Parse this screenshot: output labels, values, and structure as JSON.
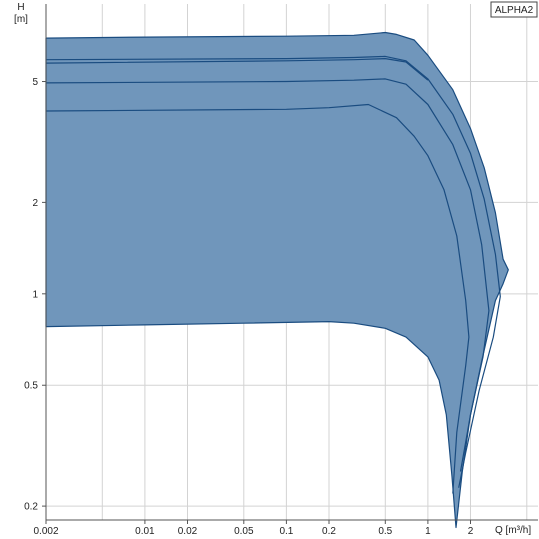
{
  "chart_data": {
    "type": "area",
    "title": "",
    "legend": "ALPHA2",
    "legend_position": "top-right",
    "x_scale": "log",
    "y_scale": "log",
    "xlabel": "Q [m³/h]",
    "ylabel_top": "H",
    "ylabel_unit": "[m]",
    "xlim": [
      0.002,
      6
    ],
    "ylim": [
      0.18,
      9
    ],
    "grid": true,
    "x_ticks": [
      {
        "value": 0.002,
        "label": "0.002"
      },
      {
        "value": 0.01,
        "label": "0.01"
      },
      {
        "value": 0.02,
        "label": "0.02"
      },
      {
        "value": 0.05,
        "label": "0.05"
      },
      {
        "value": 0.1,
        "label": "0.1"
      },
      {
        "value": 0.2,
        "label": "0.2"
      },
      {
        "value": 0.5,
        "label": "0.5"
      },
      {
        "value": 1,
        "label": "1"
      },
      {
        "value": 2,
        "label": "2"
      }
    ],
    "x_grid": [
      0.002,
      0.005,
      0.01,
      0.02,
      0.05,
      0.1,
      0.2,
      0.5,
      1,
      2,
      5
    ],
    "y_ticks": [
      {
        "value": 0.2,
        "label": "0.2"
      },
      {
        "value": 0.5,
        "label": "0.5"
      },
      {
        "value": 1,
        "label": "1"
      },
      {
        "value": 2,
        "label": "2"
      },
      {
        "value": 5,
        "label": "5"
      }
    ],
    "y_grid": [
      0.2,
      0.5,
      1,
      2,
      5
    ],
    "colors": {
      "fill": "#7096bb",
      "line": "#1a4c80",
      "grid": "#d3d3d3",
      "axis": "#555555"
    },
    "envelope": [
      {
        "x": 0.002,
        "y": 6.95
      },
      {
        "x": 0.01,
        "y": 7.0
      },
      {
        "x": 0.1,
        "y": 7.05
      },
      {
        "x": 0.3,
        "y": 7.1
      },
      {
        "x": 0.5,
        "y": 7.25
      },
      {
        "x": 0.6,
        "y": 7.15
      },
      {
        "x": 0.8,
        "y": 6.85
      },
      {
        "x": 1.0,
        "y": 6.1
      },
      {
        "x": 1.5,
        "y": 4.7
      },
      {
        "x": 2.0,
        "y": 3.5
      },
      {
        "x": 2.5,
        "y": 2.6
      },
      {
        "x": 3.0,
        "y": 1.85
      },
      {
        "x": 3.4,
        "y": 1.3
      },
      {
        "x": 3.7,
        "y": 1.2
      },
      {
        "x": 3.4,
        "y": 1.08
      },
      {
        "x": 3.0,
        "y": 0.95
      },
      {
        "x": 2.4,
        "y": 0.6
      },
      {
        "x": 2.0,
        "y": 0.4
      },
      {
        "x": 1.75,
        "y": 0.26
      },
      {
        "x": 1.58,
        "y": 0.17
      },
      {
        "x": 1.48,
        "y": 0.25
      },
      {
        "x": 1.35,
        "y": 0.4
      },
      {
        "x": 1.2,
        "y": 0.52
      },
      {
        "x": 1.0,
        "y": 0.62
      },
      {
        "x": 0.7,
        "y": 0.72
      },
      {
        "x": 0.5,
        "y": 0.77
      },
      {
        "x": 0.3,
        "y": 0.8
      },
      {
        "x": 0.2,
        "y": 0.81
      },
      {
        "x": 0.05,
        "y": 0.8
      },
      {
        "x": 0.01,
        "y": 0.79
      },
      {
        "x": 0.002,
        "y": 0.78
      }
    ],
    "series": [
      {
        "values": [
          {
            "x": 0.002,
            "y": 5.9
          },
          {
            "x": 0.1,
            "y": 5.95
          },
          {
            "x": 0.3,
            "y": 6.0
          },
          {
            "x": 0.5,
            "y": 6.05
          },
          {
            "x": 0.7,
            "y": 5.85
          },
          {
            "x": 1.0,
            "y": 5.1
          },
          {
            "x": 1.5,
            "y": 3.9
          },
          {
            "x": 2.0,
            "y": 2.9
          },
          {
            "x": 2.5,
            "y": 2.05
          },
          {
            "x": 3.0,
            "y": 1.35
          },
          {
            "x": 3.25,
            "y": 0.98
          },
          {
            "x": 2.9,
            "y": 0.72
          },
          {
            "x": 2.3,
            "y": 0.48
          },
          {
            "x": 1.85,
            "y": 0.3
          },
          {
            "x": 1.65,
            "y": 0.23
          }
        ]
      },
      {
        "values": [
          {
            "x": 0.002,
            "y": 5.75
          },
          {
            "x": 0.1,
            "y": 5.85
          },
          {
            "x": 0.3,
            "y": 5.9
          },
          {
            "x": 0.5,
            "y": 5.95
          },
          {
            "x": 0.7,
            "y": 5.8
          },
          {
            "x": 1.0,
            "y": 5.05
          }
        ]
      },
      {
        "values": [
          {
            "x": 0.002,
            "y": 4.95
          },
          {
            "x": 0.1,
            "y": 5.0
          },
          {
            "x": 0.3,
            "y": 5.05
          },
          {
            "x": 0.5,
            "y": 5.1
          },
          {
            "x": 0.7,
            "y": 4.9
          },
          {
            "x": 1.0,
            "y": 4.2
          },
          {
            "x": 1.5,
            "y": 3.1
          },
          {
            "x": 2.0,
            "y": 2.2
          },
          {
            "x": 2.4,
            "y": 1.45
          },
          {
            "x": 2.7,
            "y": 0.88
          },
          {
            "x": 2.45,
            "y": 0.62
          },
          {
            "x": 2.0,
            "y": 0.4
          },
          {
            "x": 1.7,
            "y": 0.26
          }
        ]
      },
      {
        "values": [
          {
            "x": 0.002,
            "y": 4.0
          },
          {
            "x": 0.1,
            "y": 4.05
          },
          {
            "x": 0.2,
            "y": 4.1
          },
          {
            "x": 0.38,
            "y": 4.2
          },
          {
            "x": 0.6,
            "y": 3.8
          },
          {
            "x": 0.8,
            "y": 3.3
          },
          {
            "x": 1.0,
            "y": 2.85
          },
          {
            "x": 1.3,
            "y": 2.2
          },
          {
            "x": 1.6,
            "y": 1.55
          },
          {
            "x": 1.85,
            "y": 0.95
          },
          {
            "x": 1.95,
            "y": 0.72
          },
          {
            "x": 1.85,
            "y": 0.58
          },
          {
            "x": 1.6,
            "y": 0.35
          },
          {
            "x": 1.5,
            "y": 0.22
          }
        ]
      }
    ]
  }
}
